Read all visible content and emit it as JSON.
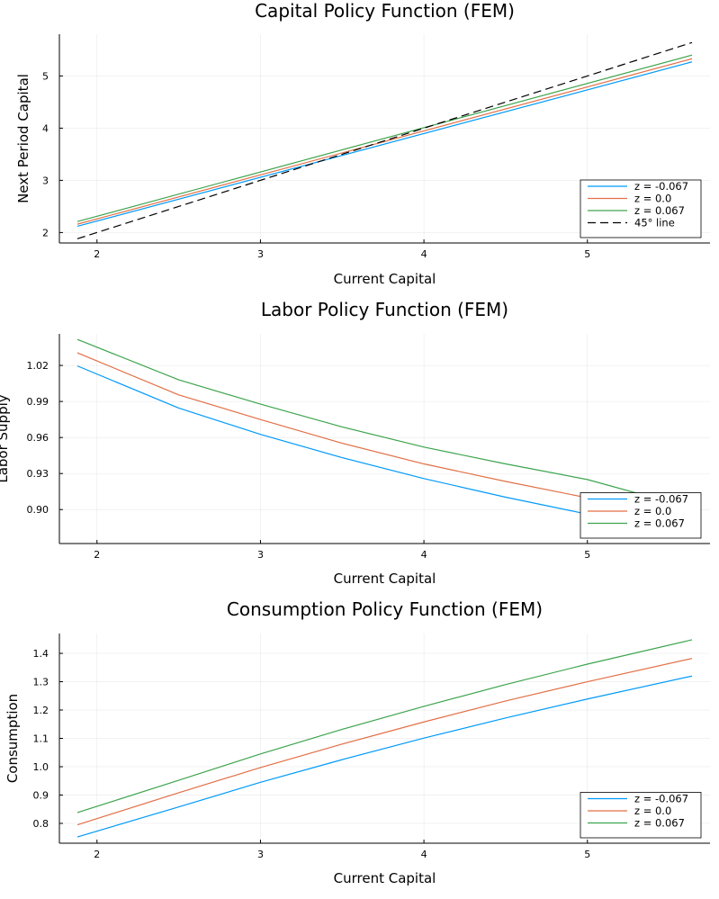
{
  "figure": {
    "background": "#ffffff",
    "series_colors": [
      "#009af9",
      "#e26f46",
      "#3da44d"
    ],
    "reference_color": "#000000"
  },
  "chart_data": [
    {
      "type": "line",
      "title": "Capital Policy Function (FEM)",
      "xlabel": "Current Capital",
      "ylabel": "Next Period Capital",
      "xlim": [
        1.77,
        5.75
      ],
      "ylim": [
        1.8,
        5.8
      ],
      "xticks": [
        "2",
        "3",
        "4",
        "5"
      ],
      "yticks": [
        "2",
        "3",
        "4",
        "5"
      ],
      "grid": true,
      "legend_position": "bottom-right",
      "x": [
        1.88,
        5.64
      ],
      "series": [
        {
          "name": "z = -0.067",
          "color": "#009af9",
          "style": "solid",
          "values": [
            2.12,
            5.27
          ]
        },
        {
          "name": "z = 0.0",
          "color": "#e26f46",
          "style": "solid",
          "values": [
            2.16,
            5.33
          ]
        },
        {
          "name": "z = 0.067",
          "color": "#3da44d",
          "style": "solid",
          "values": [
            2.21,
            5.4
          ]
        },
        {
          "name": "45° line",
          "color": "#000000",
          "style": "dashed",
          "values": [
            1.88,
            5.64
          ]
        }
      ]
    },
    {
      "type": "line",
      "title": "Labor Policy Function (FEM)",
      "xlabel": "Current Capital",
      "ylabel": "Labor Supply",
      "xlim": [
        1.77,
        5.75
      ],
      "ylim": [
        0.8717,
        1.0463
      ],
      "xticks": [
        "2",
        "3",
        "4",
        "5"
      ],
      "yticks": [
        "0.90",
        "0.93",
        "0.96",
        "0.99",
        "1.02"
      ],
      "grid": true,
      "legend_position": "bottom-right",
      "x": [
        1.88,
        2.5,
        3.0,
        3.5,
        4.0,
        4.5,
        5.0,
        5.64
      ],
      "series": [
        {
          "name": "z = -0.067",
          "color": "#009af9",
          "style": "solid",
          "values": [
            1.0196,
            0.9845,
            0.9626,
            0.9432,
            0.9258,
            0.9103,
            0.8962,
            0.8792
          ]
        },
        {
          "name": "z = 0.0",
          "color": "#e26f46",
          "style": "solid",
          "values": [
            1.0305,
            0.9955,
            0.975,
            0.9552,
            0.938,
            0.9234,
            0.9098,
            0.89
          ]
        },
        {
          "name": "z = 0.067",
          "color": "#3da44d",
          "style": "solid",
          "values": [
            1.0417,
            1.008,
            0.9878,
            0.9688,
            0.952,
            0.938,
            0.925,
            0.901
          ]
        }
      ]
    },
    {
      "type": "line",
      "title": "Consumption Policy Function (FEM)",
      "xlabel": "Current Capital",
      "ylabel": "Consumption",
      "xlim": [
        1.77,
        5.75
      ],
      "ylim": [
        0.73,
        1.47
      ],
      "xticks": [
        "2",
        "3",
        "4",
        "5"
      ],
      "yticks": [
        "0.8",
        "0.9",
        "1.0",
        "1.1",
        "1.2",
        "1.3",
        "1.4"
      ],
      "grid": true,
      "legend_position": "bottom-right",
      "x": [
        1.88,
        2.5,
        3.0,
        3.5,
        4.0,
        4.5,
        5.0,
        5.64
      ],
      "series": [
        {
          "name": "z = -0.067",
          "color": "#009af9",
          "style": "solid",
          "values": [
            0.752,
            0.858,
            0.945,
            1.025,
            1.101,
            1.172,
            1.239,
            1.32
          ]
        },
        {
          "name": "z = 0.0",
          "color": "#e26f46",
          "style": "solid",
          "values": [
            0.795,
            0.908,
            0.997,
            1.08,
            1.158,
            1.232,
            1.3,
            1.382
          ]
        },
        {
          "name": "z = 0.067",
          "color": "#3da44d",
          "style": "solid",
          "values": [
            0.838,
            0.952,
            1.045,
            1.132,
            1.213,
            1.29,
            1.362,
            1.448
          ]
        }
      ]
    }
  ]
}
